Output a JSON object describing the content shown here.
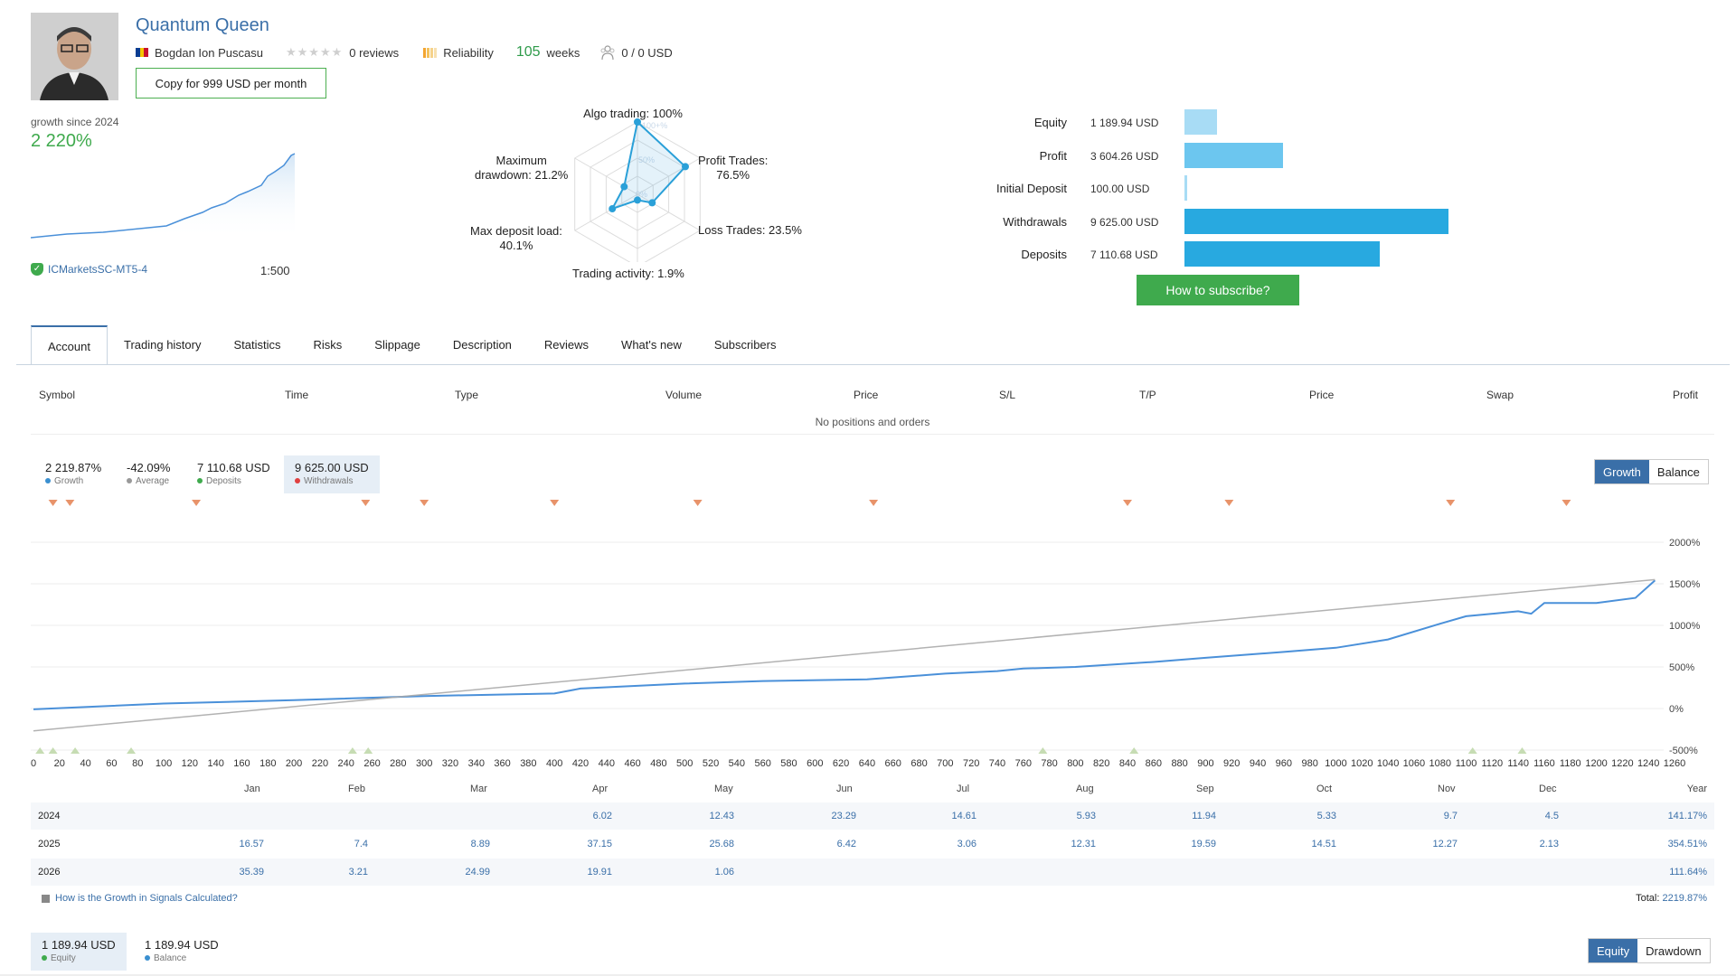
{
  "header": {
    "title": "Quantum Queen",
    "author": "Bogdan Ion Puscasu",
    "reviews": "0 reviews",
    "reliability": "Reliability",
    "weeks_num": "105",
    "weeks_label": "weeks",
    "subscribers": "0 / 0 USD",
    "copy_button": "Copy for 999 USD per month"
  },
  "growth_mini": {
    "label": "growth since 2024",
    "value": "2 220%",
    "server": "ICMarketsSC-MT5-4",
    "leverage": "1:500"
  },
  "radar": {
    "algo": "Algo trading: 100%",
    "profit_trades": "Profit Trades:\n76.5%",
    "loss_trades": "Loss Trades: 23.5%",
    "activity": "Trading activity: 1.9%",
    "deposit_load": "Max deposit load:\n40.1%",
    "drawdown": "Maximum\ndrawdown: 21.2%",
    "ring_100": "100+%",
    "ring_50": "50%",
    "ring_0": "0%",
    "values": [
      1.0,
      0.765,
      0.235,
      0.019,
      0.401,
      0.212
    ]
  },
  "balance_panel": {
    "rows": [
      {
        "label": "Equity",
        "value": "1 189.94 USD",
        "amount": 1189.94,
        "color": "#a8dcf5"
      },
      {
        "label": "Profit",
        "value": "3 604.26 USD",
        "amount": 3604.26,
        "color": "#6cc6ef"
      },
      {
        "label": "Initial Deposit",
        "value": "100.00 USD",
        "amount": 100.0,
        "color": "#a8dcf5"
      },
      {
        "label": "Withdrawals",
        "value": "9 625.00 USD",
        "amount": 9625.0,
        "color": "#28a9e0"
      },
      {
        "label": "Deposits",
        "value": "7 110.68 USD",
        "amount": 7110.68,
        "color": "#28a9e0"
      }
    ],
    "subscribe_button": "How to subscribe?"
  },
  "tabs": [
    "Account",
    "Trading history",
    "Statistics",
    "Risks",
    "Slippage",
    "Description",
    "Reviews",
    "What's new",
    "Subscribers"
  ],
  "positions": {
    "headers": [
      "Symbol",
      "Time",
      "Type",
      "Volume",
      "Price",
      "S/L",
      "T/P",
      "Price",
      "Swap",
      "Profit"
    ],
    "empty": "No positions and orders"
  },
  "chart_stats": [
    {
      "value": "2 219.87%",
      "label": "Growth",
      "color": "#3a8fd0"
    },
    {
      "value": "-42.09%",
      "label": "Average",
      "color": "#999999"
    },
    {
      "value": "7 110.68 USD",
      "label": "Deposits",
      "color": "#3faa4d"
    },
    {
      "value": "9 625.00 USD",
      "label": "Withdrawals",
      "color": "#e04040"
    }
  ],
  "chart_toggle": {
    "growth": "Growth",
    "balance": "Balance"
  },
  "chart_data": {
    "type": "line",
    "x_ticks": [
      "0",
      "20",
      "40",
      "60",
      "80",
      "100",
      "120",
      "140",
      "160",
      "180",
      "200",
      "220",
      "240",
      "260",
      "280",
      "300",
      "320",
      "340",
      "360",
      "380",
      "400",
      "420",
      "440",
      "460",
      "480",
      "500",
      "520",
      "540",
      "560",
      "580",
      "600",
      "620",
      "640",
      "660",
      "680",
      "700",
      "720",
      "740",
      "760",
      "780",
      "800",
      "820",
      "840",
      "860",
      "880",
      "900",
      "920",
      "940",
      "960",
      "980",
      "1000",
      "1020",
      "1040",
      "1060",
      "1080",
      "1100",
      "1120",
      "1140",
      "1160",
      "1180",
      "1200",
      "1220",
      "1240",
      "1260"
    ],
    "y_ticks": [
      "2000%",
      "1500%",
      "1000%",
      "500%",
      "0%",
      "-500%"
    ],
    "ylim": [
      -500,
      2000
    ],
    "xlim": [
      0,
      1260
    ],
    "series": [
      {
        "name": "Growth",
        "color": "#4a90d9",
        "x": [
          0,
          100,
          200,
          300,
          400,
          420,
          500,
          560,
          640,
          700,
          740,
          760,
          800,
          860,
          900,
          960,
          1000,
          1040,
          1080,
          1100,
          1140,
          1150,
          1160,
          1200,
          1230,
          1245
        ],
        "y": [
          -10,
          60,
          100,
          150,
          180,
          240,
          300,
          330,
          350,
          420,
          450,
          480,
          500,
          560,
          610,
          680,
          730,
          830,
          1020,
          1110,
          1170,
          1140,
          1270,
          1270,
          1330,
          1540
        ]
      },
      {
        "name": "Average",
        "color": "#aaaaaa",
        "x": [
          0,
          1245
        ],
        "y": [
          -270,
          1550
        ]
      }
    ],
    "withdrawal_markers": [
      15,
      28,
      125,
      255,
      300,
      400,
      510,
      645,
      840,
      918,
      1088,
      1177
    ],
    "deposit_markers": [
      5,
      15,
      32,
      75,
      245,
      257,
      775,
      845,
      1105,
      1143
    ]
  },
  "monthly": {
    "months": [
      "Jan",
      "Feb",
      "Mar",
      "Apr",
      "May",
      "Jun",
      "Jul",
      "Aug",
      "Sep",
      "Oct",
      "Nov",
      "Dec",
      "Year"
    ],
    "rows": [
      {
        "year": "2024",
        "cells": [
          "",
          "",
          "",
          "6.02",
          "12.43",
          "23.29",
          "14.61",
          "5.93",
          "11.94",
          "5.33",
          "9.7",
          "4.5",
          "141.17%"
        ]
      },
      {
        "year": "2025",
        "cells": [
          "16.57",
          "7.4",
          "8.89",
          "37.15",
          "25.68",
          "6.42",
          "3.06",
          "12.31",
          "19.59",
          "14.51",
          "12.27",
          "2.13",
          "354.51%"
        ]
      },
      {
        "year": "2026",
        "cells": [
          "35.39",
          "3.21",
          "24.99",
          "19.91",
          "1.06",
          "",
          "",
          "",
          "",
          "",
          "",
          "",
          "111.64%"
        ]
      }
    ],
    "help": "How is the Growth in Signals Calculated?",
    "total_label": "Total:",
    "total_value": "2219.87%"
  },
  "bottom_stats": [
    {
      "value": "1 189.94 USD",
      "label": "Equity",
      "color": "#3faa4d"
    },
    {
      "value": "1 189.94 USD",
      "label": "Balance",
      "color": "#3a8fd0"
    }
  ],
  "bottom_toggle": {
    "equity": "Equity",
    "drawdown": "Drawdown"
  }
}
